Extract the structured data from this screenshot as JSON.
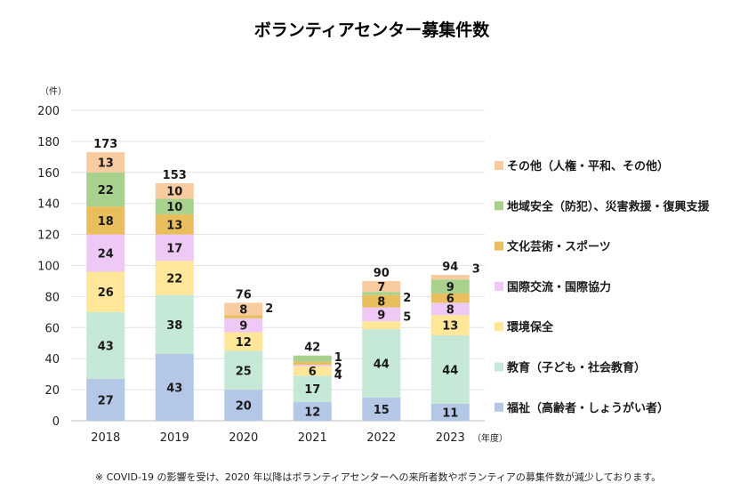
{
  "chart_data": {
    "type": "bar",
    "stacked": true,
    "title": "ボランティアセンター募集件数",
    "ylabel": "（件）",
    "xunit": "（年度）",
    "ylim": [
      0,
      200
    ],
    "yticks": [
      0,
      20,
      40,
      60,
      80,
      100,
      120,
      140,
      160,
      180,
      200
    ],
    "grid": true,
    "legend_position": "right",
    "categories": [
      "2018",
      "2019",
      "2020",
      "2021",
      "2022",
      "2023"
    ],
    "totals": [
      173,
      153,
      76,
      42,
      90,
      94
    ],
    "series": [
      {
        "name": "福祉（高齢者・しょうがい者）",
        "color": "#b4c7e7",
        "values": [
          27,
          43,
          20,
          12,
          15,
          11
        ]
      },
      {
        "name": "教育（子ども・社会教育）",
        "color": "#c5e8d7",
        "values": [
          43,
          38,
          25,
          17,
          44,
          44
        ]
      },
      {
        "name": "環境保全",
        "color": "#ffe699",
        "values": [
          26,
          22,
          12,
          6,
          5,
          13
        ]
      },
      {
        "name": "国際交流・国際協力",
        "color": "#eec9f5",
        "values": [
          24,
          17,
          9,
          1,
          9,
          8
        ]
      },
      {
        "name": "文化芸術・スポーツ",
        "color": "#e9be5c",
        "values": [
          18,
          13,
          2,
          2,
          8,
          6
        ]
      },
      {
        "name": "地域安全（防犯）、災害救援・復興支援",
        "color": "#a9d18e",
        "values": [
          22,
          10,
          0,
          4,
          2,
          9
        ]
      },
      {
        "name": "その他（人権・平和、その他）",
        "color": "#f8cba0",
        "values": [
          13,
          10,
          8,
          0,
          7,
          3
        ]
      }
    ],
    "footnote": "※ COVID-19 の影響を受け、2020 年以降はボランティアセンターへの来所者数やボランティアの募集件数が減少しております。"
  }
}
